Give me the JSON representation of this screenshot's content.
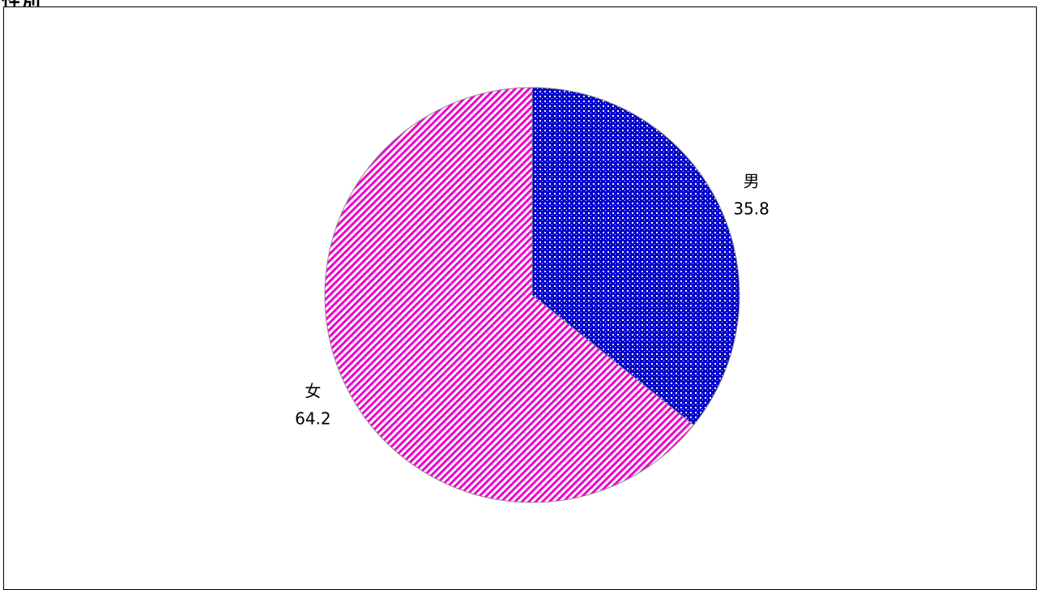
{
  "page": {
    "title": "性別"
  },
  "chart_data": {
    "type": "pie",
    "title": "",
    "start_angle_deg": 0,
    "direction": "clockwise",
    "slices": [
      {
        "label": "男",
        "value": 35.8,
        "value_label": "35.8",
        "color": "#0000cc",
        "pattern": "dotted-grid"
      },
      {
        "label": "女",
        "value": 64.2,
        "value_label": "64.2",
        "color": "#ee00cc",
        "pattern": "diagonal-stripes"
      }
    ]
  }
}
